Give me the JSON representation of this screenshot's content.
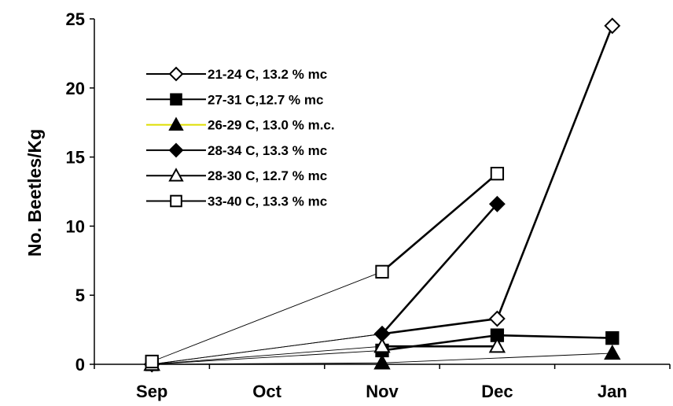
{
  "chart_data": {
    "type": "line",
    "categories": [
      "Sep",
      "Oct",
      "Nov",
      "Dec",
      "Jan"
    ],
    "ylabel": "No. Beetles/Kg",
    "ylim": [
      0,
      25
    ],
    "yticks": [
      0,
      5,
      10,
      15,
      20,
      25
    ],
    "grid": false,
    "legend_position": "upper-left",
    "series": [
      {
        "name": "21-24 C, 13.2 % mc",
        "marker": "diamond-open",
        "color": "#000000",
        "values": [
          0,
          null,
          2.2,
          3.3,
          24.5
        ]
      },
      {
        "name": "27-31 C,12.7 % mc",
        "marker": "square-filled",
        "color": "#000000",
        "values": [
          0,
          null,
          1.0,
          2.1,
          1.9
        ]
      },
      {
        "name": "26-29 C, 13.0 % m.c.",
        "marker": "triangle-filled",
        "color": "#000000",
        "legend_line_color": "#dede00",
        "values": [
          0,
          null,
          0.1,
          null,
          0.8
        ]
      },
      {
        "name": "28-34 C, 13.3 % mc",
        "marker": "diamond-filled",
        "color": "#000000",
        "values": [
          0,
          null,
          2.2,
          11.6,
          null
        ]
      },
      {
        "name": "28-30 C, 12.7 % mc",
        "marker": "triangle-open",
        "color": "#000000",
        "values": [
          0,
          null,
          1.3,
          1.3,
          null
        ]
      },
      {
        "name": "33-40 C, 13.3 % mc",
        "marker": "square-open",
        "color": "#000000",
        "values": [
          0.2,
          null,
          6.7,
          13.8,
          null
        ]
      }
    ]
  }
}
